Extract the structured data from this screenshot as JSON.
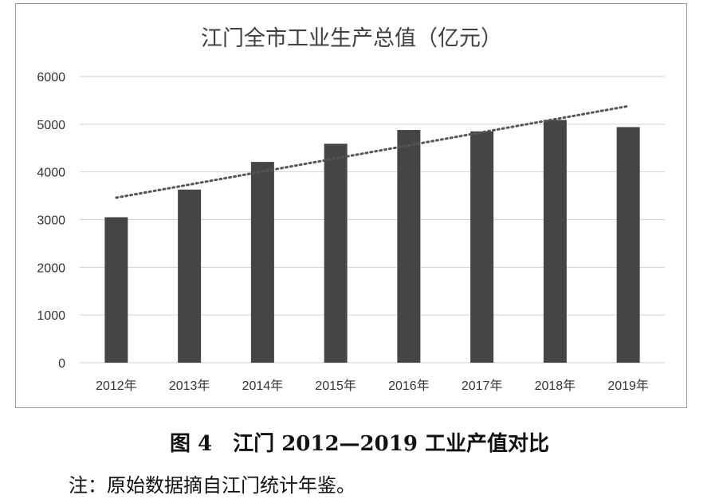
{
  "chart_data": {
    "type": "bar",
    "title": "江门全市工业生产总值（亿元）",
    "categories": [
      "2012年",
      "2013年",
      "2014年",
      "2015年",
      "2016年",
      "2017年",
      "2018年",
      "2019年"
    ],
    "series": [
      {
        "values": [
          3050,
          3630,
          4210,
          4590,
          4880,
          4850,
          5090,
          4940
        ]
      }
    ],
    "trendline": {
      "type": "linear",
      "style": "dotted",
      "start": 3460,
      "end": 5380
    },
    "yticks": [
      "0",
      "1000",
      "2000",
      "3000",
      "4000",
      "5000",
      "6000"
    ],
    "ylim": [
      0,
      6000
    ],
    "xlabel": "",
    "ylabel": "",
    "grid": true,
    "legend": "none",
    "colors": {
      "bar": "#454545",
      "grid": "#d2d2d2",
      "trend": "#555555"
    }
  },
  "caption": "图 4　江门 2012—2019 工业产值对比",
  "note": "注：原始数据摘自江门统计年鉴。"
}
